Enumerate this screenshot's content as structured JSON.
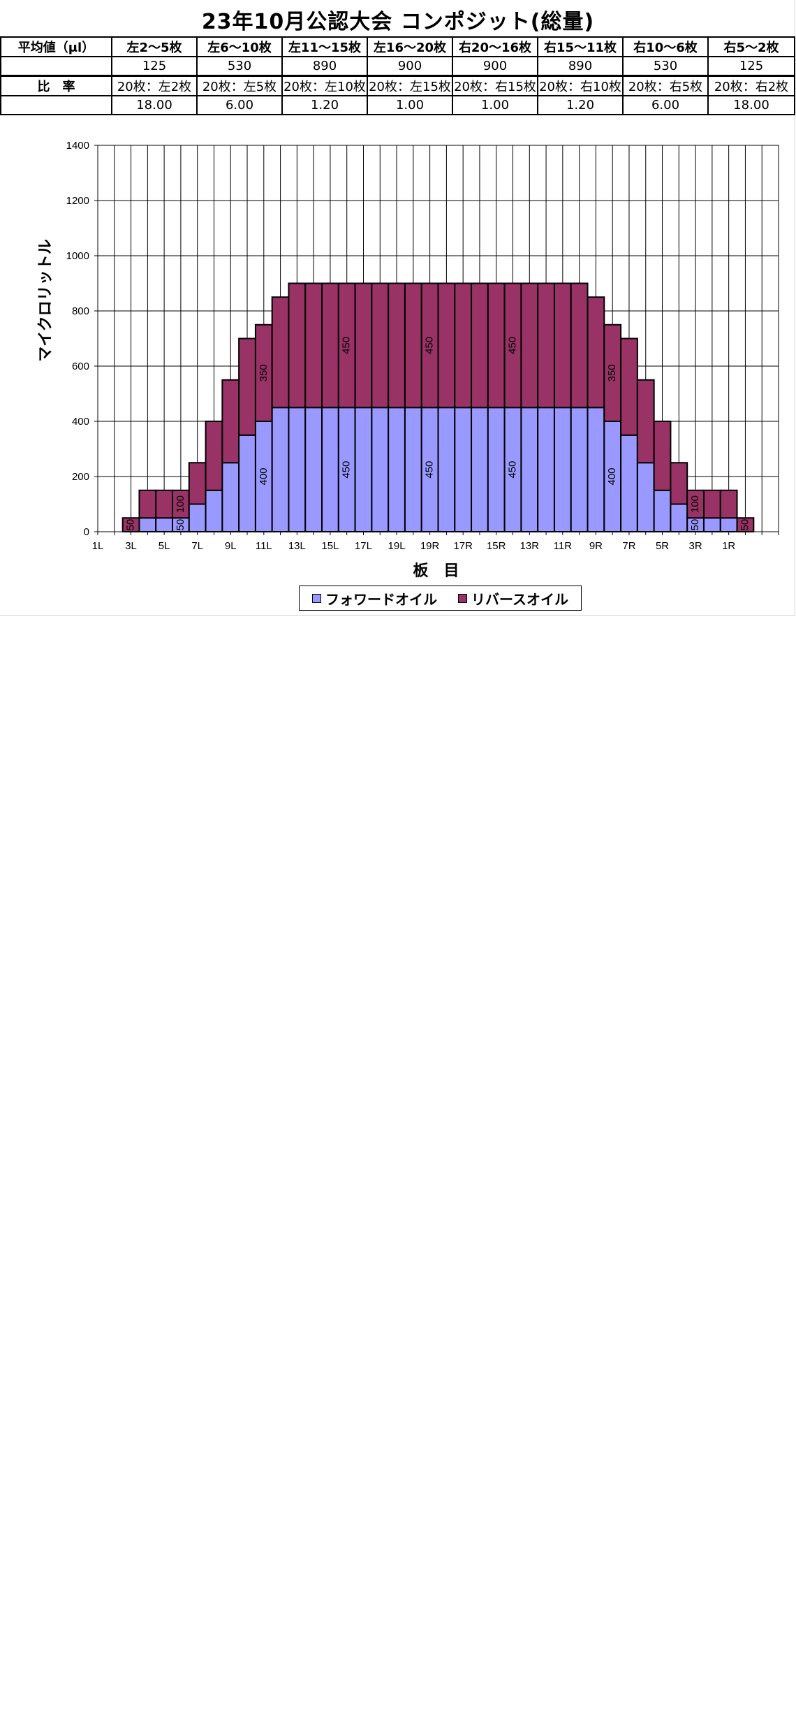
{
  "title": "23年10月公認大会 コンポジット(総量)",
  "table": {
    "label_avg": "平均値（μl）",
    "label_ratio": "比　率",
    "columns": [
      "左2～5枚",
      "左6～10枚",
      "左11～15枚",
      "左16～20枚",
      "右20～16枚",
      "右15～11枚",
      "右10～6枚",
      "右5～2枚"
    ],
    "averages": [
      "125",
      "530",
      "890",
      "900",
      "900",
      "890",
      "530",
      "125"
    ],
    "ratio_labels": [
      "20枚：左2枚",
      "20枚：左5枚",
      "20枚：左10枚",
      "20枚：左15枚",
      "20枚：右15枚",
      "20枚：右10枚",
      "20枚：右5枚",
      "20枚：右2枚"
    ],
    "ratio_values": [
      "18.00",
      "6.00",
      "1.20",
      "1.00",
      "1.00",
      "1.20",
      "6.00",
      "18.00"
    ]
  },
  "chart_data": {
    "type": "bar",
    "stacked": true,
    "categories": [
      "1L",
      "2L",
      "3L",
      "4L",
      "5L",
      "6L",
      "7L",
      "8L",
      "9L",
      "10L",
      "11L",
      "12L",
      "13L",
      "14L",
      "15L",
      "16L",
      "17L",
      "18L",
      "19L",
      "20L",
      "20R",
      "19R",
      "18R",
      "17R",
      "16R",
      "15R",
      "14R",
      "13R",
      "12R",
      "11R",
      "10R",
      "9R",
      "8R",
      "7R",
      "6R",
      "5R",
      "4R",
      "3R",
      "2R",
      "1R"
    ],
    "tick_labels": [
      "1L",
      "3L",
      "5L",
      "7L",
      "9L",
      "11L",
      "13L",
      "15L",
      "17L",
      "19L",
      "19R",
      "17R",
      "15R",
      "13R",
      "11R",
      "9R",
      "7R",
      "5R",
      "3R",
      "1R"
    ],
    "series": [
      {
        "name": "フォワードオイル",
        "color": "#9999ff",
        "values": [
          0,
          0,
          50,
          50,
          50,
          100,
          150,
          250,
          350,
          400,
          450,
          450,
          450,
          450,
          450,
          450,
          450,
          450,
          450,
          450,
          450,
          450,
          450,
          450,
          450,
          450,
          450,
          450,
          450,
          450,
          400,
          350,
          250,
          150,
          100,
          50,
          50,
          50,
          0,
          0
        ]
      },
      {
        "name": "リバースオイル",
        "color": "#993366",
        "values": [
          0,
          50,
          100,
          100,
          100,
          150,
          250,
          300,
          350,
          350,
          400,
          450,
          450,
          450,
          450,
          450,
          450,
          450,
          450,
          450,
          450,
          450,
          450,
          450,
          450,
          450,
          450,
          450,
          450,
          400,
          350,
          350,
          300,
          250,
          150,
          100,
          100,
          100,
          50,
          0
        ]
      }
    ],
    "annotations": [
      {
        "text": "50",
        "series": 1,
        "index": 1
      },
      {
        "text": "50",
        "series": 0,
        "index": 4
      },
      {
        "text": "100",
        "series": 1,
        "index": 4
      },
      {
        "text": "400",
        "series": 0,
        "index": 9
      },
      {
        "text": "350",
        "series": 1,
        "index": 9
      },
      {
        "text": "450",
        "series": 0,
        "index": 14
      },
      {
        "text": "450",
        "series": 1,
        "index": 14
      },
      {
        "text": "450",
        "series": 0,
        "index": 19
      },
      {
        "text": "450",
        "series": 1,
        "index": 19
      },
      {
        "text": "450",
        "series": 0,
        "index": 24
      },
      {
        "text": "450",
        "series": 1,
        "index": 24
      },
      {
        "text": "400",
        "series": 0,
        "index": 30
      },
      {
        "text": "350",
        "series": 1,
        "index": 30
      },
      {
        "text": "50",
        "series": 0,
        "index": 35
      },
      {
        "text": "100",
        "series": 1,
        "index": 35
      },
      {
        "text": "50",
        "series": 1,
        "index": 38
      }
    ],
    "ylabel": "マイクロリットル",
    "xlabel": "板　目",
    "ylim": [
      0,
      1400
    ],
    "yticks": [
      0,
      200,
      400,
      600,
      800,
      1000,
      1200,
      1400
    ],
    "grid": true,
    "legend": "bottom"
  }
}
